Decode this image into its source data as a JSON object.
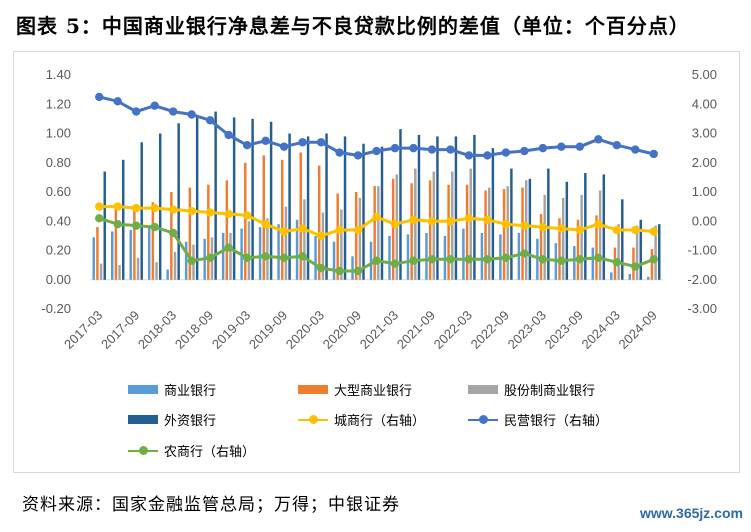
{
  "title": "图表 5：中国商业银行净息差与不良贷款比例的差值（单位：个百分点）",
  "source": "资料来源：国家金融监管总局；万得；中银证券",
  "watermark": "www.365jz.com",
  "chart_data": {
    "type": "bar",
    "left_ylim": [
      -0.2,
      1.4
    ],
    "right_ylim": [
      -3.0,
      5.0
    ],
    "left_ticks": [
      "-0.20",
      "0.00",
      "0.20",
      "0.40",
      "0.60",
      "0.80",
      "1.00",
      "1.20",
      "1.40"
    ],
    "right_ticks": [
      "-3.00",
      "-2.00",
      "-1.00",
      "0.00",
      "1.00",
      "2.00",
      "3.00",
      "4.00",
      "5.00"
    ],
    "x_tick_labels": [
      "2017-03",
      "2017-09",
      "2018-03",
      "2018-09",
      "2019-03",
      "2019-09",
      "2020-03",
      "2020-09",
      "2021-03",
      "2021-09",
      "2022-03",
      "2022-09",
      "2023-03",
      "2023-09",
      "2024-03",
      "2024-09"
    ],
    "categories": [
      "2017-03",
      "2017-06",
      "2017-09",
      "2017-12",
      "2018-03",
      "2018-06",
      "2018-09",
      "2018-12",
      "2019-03",
      "2019-06",
      "2019-09",
      "2019-12",
      "2020-03",
      "2020-06",
      "2020-09",
      "2020-12",
      "2021-03",
      "2021-06",
      "2021-09",
      "2021-12",
      "2022-03",
      "2022-06",
      "2022-09",
      "2022-12",
      "2023-03",
      "2023-06",
      "2023-09",
      "2023-12",
      "2024-03",
      "2024-06",
      "2024-09"
    ],
    "bar_series": [
      {
        "name": "商业银行",
        "color": "#5b9bd5",
        "values": [
          0.29,
          0.33,
          0.34,
          0.37,
          0.07,
          0.26,
          0.28,
          0.32,
          0.35,
          0.36,
          0.38,
          0.41,
          0.3,
          0.26,
          0.16,
          0.26,
          0.3,
          0.31,
          0.32,
          0.3,
          0.35,
          0.32,
          0.31,
          0.32,
          0.28,
          0.25,
          0.23,
          0.22,
          0.05,
          0.04,
          0.02
        ]
      },
      {
        "name": "大型商业银行",
        "color": "#ed7d31",
        "values": [
          0.36,
          0.51,
          0.47,
          0.53,
          0.6,
          0.63,
          0.65,
          0.68,
          0.8,
          0.85,
          0.82,
          0.87,
          0.78,
          0.59,
          0.6,
          0.64,
          0.69,
          0.66,
          0.68,
          0.65,
          0.65,
          0.61,
          0.62,
          0.63,
          0.45,
          0.42,
          0.41,
          0.44,
          0.22,
          0.22,
          0.21
        ]
      },
      {
        "name": "股份制商业银行",
        "color": "#a5a5a5",
        "values": [
          0.11,
          0.1,
          0.15,
          0.12,
          0.19,
          0.24,
          0.29,
          0.32,
          0.4,
          0.42,
          0.5,
          0.55,
          0.46,
          0.48,
          0.56,
          0.64,
          0.72,
          0.76,
          0.74,
          0.74,
          0.76,
          0.63,
          0.64,
          0.68,
          0.58,
          0.56,
          0.58,
          0.61,
          0.38,
          0.37,
          0.37
        ]
      },
      {
        "name": "外资银行",
        "color": "#255e91",
        "values": [
          0.74,
          0.82,
          0.94,
          1.0,
          1.07,
          1.12,
          1.15,
          1.11,
          1.1,
          1.08,
          1.0,
          0.98,
          1.0,
          0.98,
          0.93,
          0.91,
          1.03,
          0.99,
          0.98,
          0.98,
          0.99,
          0.9,
          0.76,
          0.69,
          0.76,
          0.67,
          0.73,
          0.72,
          0.55,
          0.41,
          0.38
        ]
      }
    ],
    "line_series": [
      {
        "name": "城商行（右轴）",
        "color": "#ffc000",
        "values": [
          0.5,
          0.5,
          0.45,
          0.45,
          0.4,
          0.35,
          0.3,
          0.25,
          0.2,
          -0.1,
          -0.35,
          -0.25,
          -0.5,
          -0.3,
          -0.3,
          0.15,
          -0.1,
          0.05,
          0.0,
          0.0,
          0.1,
          0.05,
          -0.1,
          -0.15,
          -0.2,
          -0.25,
          -0.3,
          -0.1,
          -0.3,
          -0.3,
          -0.35
        ]
      },
      {
        "name": "民营银行（右轴）",
        "color": "#4472c4",
        "values": [
          4.25,
          4.1,
          3.75,
          3.95,
          3.75,
          3.65,
          3.45,
          2.95,
          2.6,
          2.75,
          2.55,
          2.7,
          2.7,
          2.35,
          2.25,
          2.4,
          2.5,
          2.5,
          2.45,
          2.45,
          2.25,
          2.25,
          2.35,
          2.4,
          2.5,
          2.55,
          2.55,
          2.8,
          2.6,
          2.45,
          2.3
        ]
      },
      {
        "name": "农商行（右轴）",
        "color": "#70ad47",
        "values": [
          0.1,
          -0.1,
          -0.15,
          -0.2,
          -0.4,
          -1.35,
          -1.25,
          -0.9,
          -1.25,
          -1.2,
          -1.25,
          -1.2,
          -1.6,
          -1.7,
          -1.7,
          -1.35,
          -1.45,
          -1.35,
          -1.3,
          -1.3,
          -1.3,
          -1.3,
          -1.25,
          -1.1,
          -1.3,
          -1.35,
          -1.3,
          -1.25,
          -1.4,
          -1.55,
          -1.3
        ]
      }
    ],
    "legend": [
      {
        "name": "商业银行",
        "kind": "bar",
        "color": "#5b9bd5"
      },
      {
        "name": "大型商业银行",
        "kind": "bar",
        "color": "#ed7d31"
      },
      {
        "name": "股份制商业银行",
        "kind": "bar",
        "color": "#a5a5a5"
      },
      {
        "name": "外资银行",
        "kind": "bar",
        "color": "#255e91"
      },
      {
        "name": "城商行（右轴）",
        "kind": "line",
        "color": "#ffc000"
      },
      {
        "name": "民营银行（右轴）",
        "kind": "line",
        "color": "#4472c4"
      },
      {
        "name": "农商行（右轴）",
        "kind": "line",
        "color": "#70ad47"
      }
    ],
    "legend_position": "bottom",
    "grid": false
  }
}
